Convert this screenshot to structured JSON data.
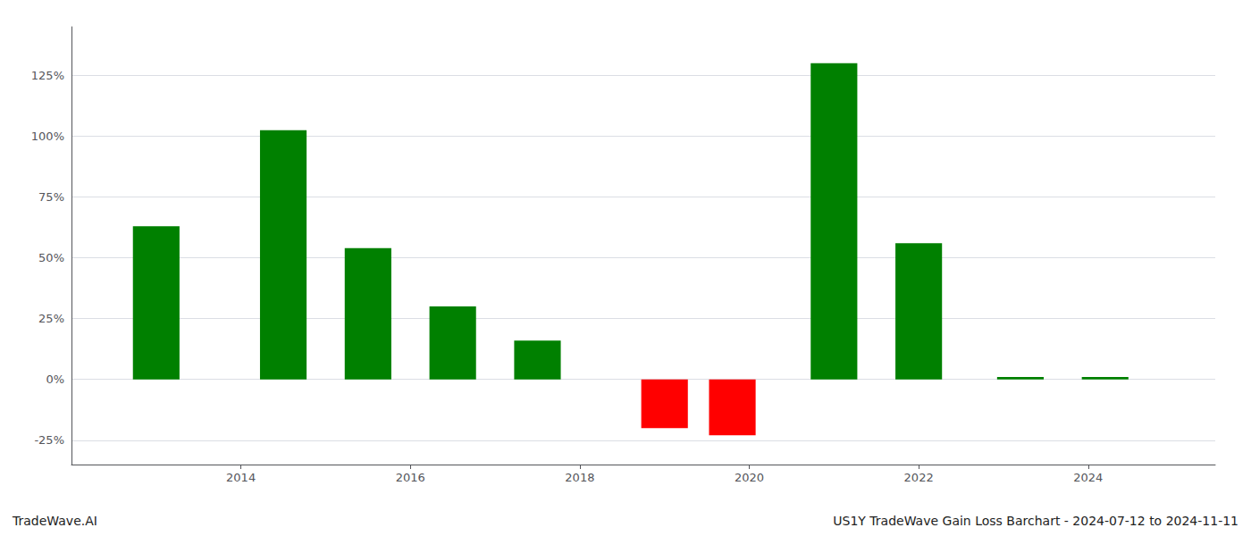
{
  "chart_data": {
    "type": "bar",
    "x": [
      2013,
      2014.5,
      2015.5,
      2016.5,
      2017.5,
      2019,
      2019.8,
      2021,
      2022,
      2023.2,
      2024.2
    ],
    "values": [
      63.0,
      102.5,
      54.0,
      30.0,
      16.0,
      -20.0,
      -23.0,
      130.0,
      56.0,
      1.0,
      1.0
    ],
    "colors": [
      "#008000",
      "#008000",
      "#008000",
      "#008000",
      "#008000",
      "#ff0000",
      "#ff0000",
      "#008000",
      "#008000",
      "#008000",
      "#008000"
    ],
    "xlim": [
      2012.0,
      2025.5
    ],
    "xticks": [
      2014,
      2016,
      2018,
      2020,
      2022,
      2024
    ],
    "ylim": [
      -35,
      145
    ],
    "yticks": [
      {
        "value": -25,
        "label": "-25%"
      },
      {
        "value": 0,
        "label": "0%"
      },
      {
        "value": 25,
        "label": "25%"
      },
      {
        "value": 50,
        "label": "50%"
      },
      {
        "value": 75,
        "label": "75%"
      },
      {
        "value": 100,
        "label": "100%"
      },
      {
        "value": 125,
        "label": "125%"
      }
    ],
    "grid": true,
    "annotations": [
      "TradeWave.AI",
      "US1Y TradeWave Gain Loss Barchart - 2024-07-12 to 2024-11-11"
    ]
  }
}
